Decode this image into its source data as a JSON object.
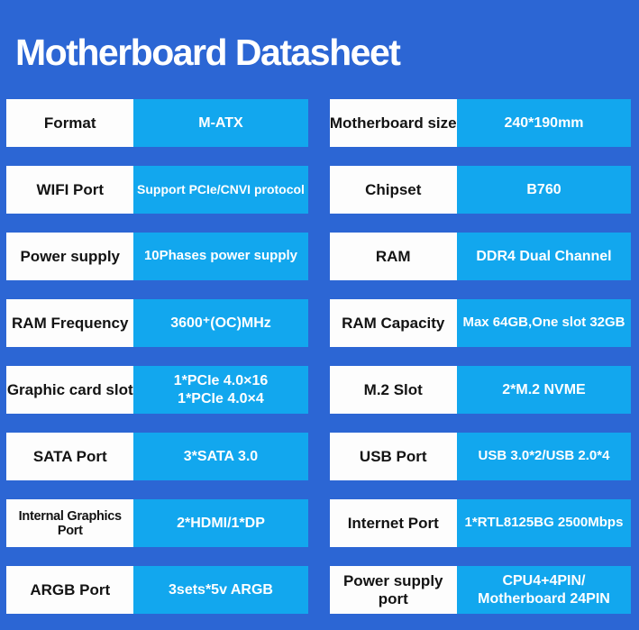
{
  "page": {
    "title": "Motherboard Datasheet"
  },
  "colors": {
    "background_blue": "#2c66d4",
    "value_box_cyan": "#12a7ee",
    "label_box_white": "#fdfdfd",
    "title_text": "#ffffff",
    "label_text": "#131313",
    "value_text": "#ffffff"
  },
  "specs": {
    "left": [
      {
        "label": "Format",
        "value": "M-ATX"
      },
      {
        "label": "WIFI Port",
        "value": "Support PCIe/CNVI protocol"
      },
      {
        "label": "Power supply",
        "value": "10Phases power supply"
      },
      {
        "label": "RAM Frequency",
        "value": "3600⁺(OC)MHz"
      },
      {
        "label": "Graphic card slot",
        "value": "1*PCIe 4.0×16\n1*PCIe 4.0×4"
      },
      {
        "label": "SATA Port",
        "value": "3*SATA 3.0"
      },
      {
        "label": "Internal Graphics Port",
        "value": "2*HDMI/1*DP"
      },
      {
        "label": "ARGB Port",
        "value": "3sets*5v ARGB"
      }
    ],
    "right": [
      {
        "label": "Motherboard size",
        "value": "240*190mm"
      },
      {
        "label": "Chipset",
        "value": "B760"
      },
      {
        "label": "RAM",
        "value": "DDR4 Dual Channel"
      },
      {
        "label": "RAM Capacity",
        "value": "Max 64GB,One slot 32GB"
      },
      {
        "label": "M.2 Slot",
        "value": "2*M.2 NVME"
      },
      {
        "label": "USB Port",
        "value": "USB 3.0*2/USB 2.0*4"
      },
      {
        "label": "Internet Port",
        "value": "1*RTL8125BG 2500Mbps"
      },
      {
        "label": "Power supply port",
        "value": "CPU4+4PIN/\nMotherboard 24PIN"
      }
    ]
  }
}
